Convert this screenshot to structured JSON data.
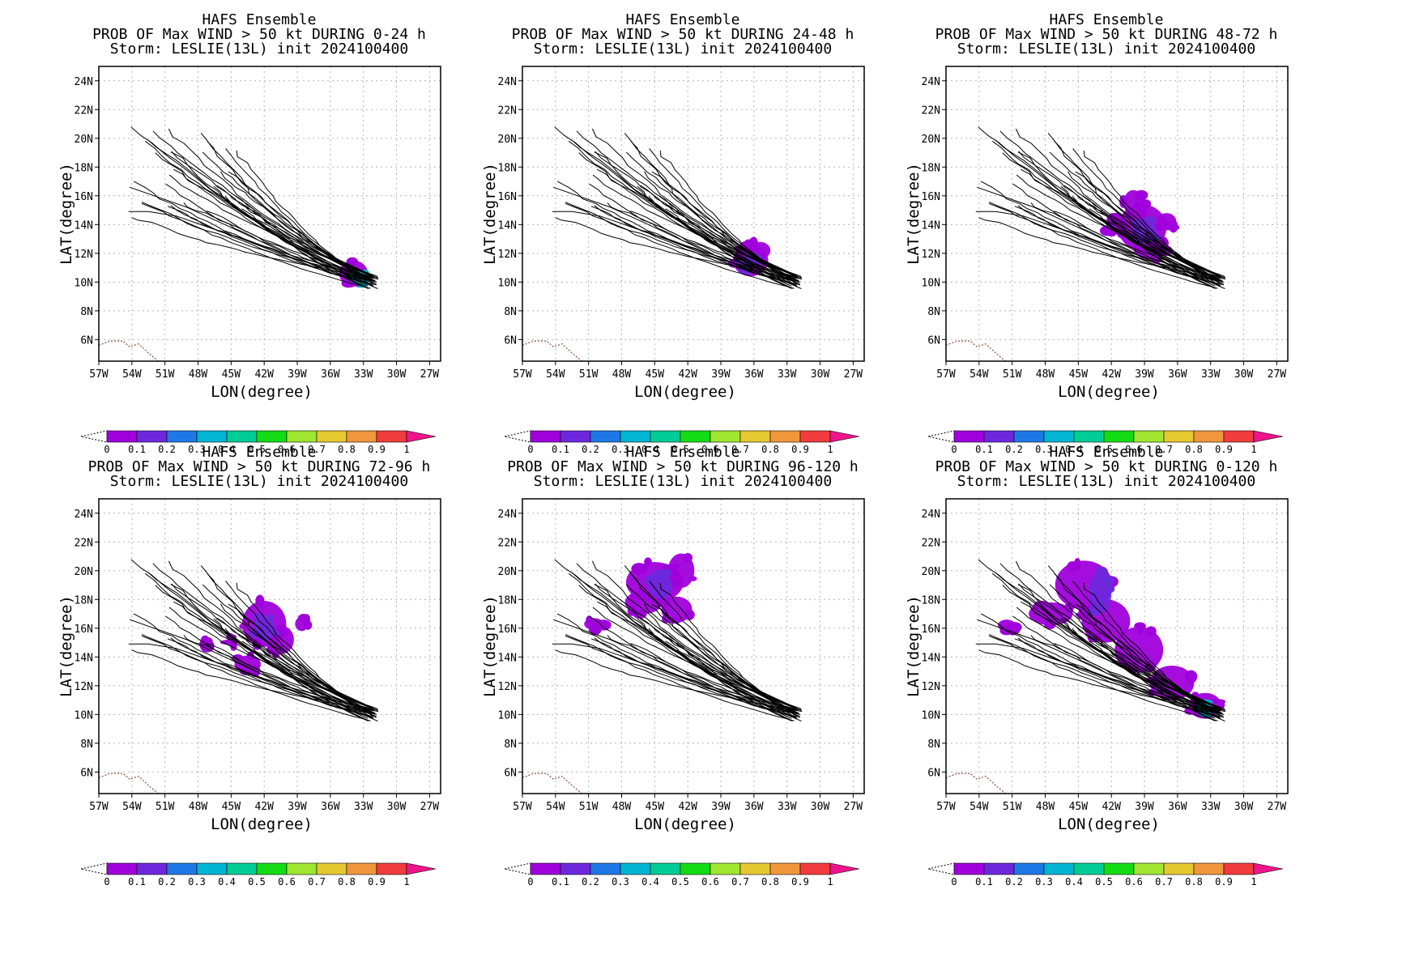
{
  "figure": {
    "colorbar": {
      "colors": [
        "#a000dc",
        "#6e28dc",
        "#1e78e6",
        "#00b4d2",
        "#00cc96",
        "#14dc14",
        "#a0e632",
        "#e6c832",
        "#f0963c",
        "#f03c3c"
      ],
      "under_color": "#ffffff",
      "over_color": "#f0148c",
      "tick_labels": [
        "0",
        "0.1",
        "0.2",
        "0.3",
        "0.4",
        "0.5",
        "0.6",
        "0.7",
        "0.8",
        "0.9",
        "1"
      ]
    },
    "style": {
      "track_color": "#000000",
      "grid_color": "#b4b4b4",
      "coast_color": "#8b4b3a"
    }
  },
  "chart_data": [
    {
      "type": "heatmap",
      "title_lines": [
        "HAFS Ensemble",
        "PROB OF Max WIND > 50 kt DURING  0-24 h",
        "Storm: LESLIE(13L) init 2024100400"
      ],
      "xlabel": "LON(degree)",
      "ylabel": "LAT(degree)",
      "x_ticks": [
        "57W",
        "54W",
        "51W",
        "48W",
        "45W",
        "42W",
        "39W",
        "36W",
        "33W",
        "30W",
        "27W"
      ],
      "y_ticks": [
        "6N",
        "8N",
        "10N",
        "12N",
        "14N",
        "16N",
        "18N",
        "20N",
        "22N",
        "24N"
      ],
      "xlim": [
        -57,
        -26
      ],
      "ylim": [
        4.5,
        25
      ],
      "grid": true,
      "prob_blobs": [
        {
          "lon": -33.9,
          "lat": 10.6,
          "rx": 1.3,
          "ry": 0.9,
          "value": 0.05
        },
        {
          "lon": -33.3,
          "lat": 10.4,
          "rx": 0.6,
          "ry": 0.4,
          "value": 0.3
        }
      ]
    },
    {
      "type": "heatmap",
      "title_lines": [
        "HAFS Ensemble",
        "PROB OF Max WIND > 50 kt DURING 24-48 h",
        "Storm: LESLIE(13L) init 2024100400"
      ],
      "xlabel": "LON(degree)",
      "ylabel": "LAT(degree)",
      "x_ticks": [
        "57W",
        "54W",
        "51W",
        "48W",
        "45W",
        "42W",
        "39W",
        "36W",
        "33W",
        "30W",
        "27W"
      ],
      "y_ticks": [
        "6N",
        "8N",
        "10N",
        "12N",
        "14N",
        "16N",
        "18N",
        "20N",
        "22N",
        "24N"
      ],
      "xlim": [
        -57,
        -26
      ],
      "ylim": [
        4.5,
        25
      ],
      "grid": true,
      "prob_blobs": [
        {
          "lon": -36.3,
          "lat": 11.5,
          "rx": 1.6,
          "ry": 1.1,
          "value": 0.05
        },
        {
          "lon": -35.5,
          "lat": 12.2,
          "rx": 1.0,
          "ry": 0.6,
          "value": 0.05
        },
        {
          "lon": -36.5,
          "lat": 11.3,
          "rx": 0.8,
          "ry": 0.5,
          "value": 0.15
        }
      ]
    },
    {
      "type": "heatmap",
      "title_lines": [
        "HAFS Ensemble",
        "PROB OF Max WIND > 50 kt DURING 48-72 h",
        "Storm: LESLIE(13L) init 2024100400"
      ],
      "xlabel": "LON(degree)",
      "ylabel": "LAT(degree)",
      "x_ticks": [
        "57W",
        "54W",
        "51W",
        "48W",
        "45W",
        "42W",
        "39W",
        "36W",
        "33W",
        "30W",
        "27W"
      ],
      "y_ticks": [
        "6N",
        "8N",
        "10N",
        "12N",
        "14N",
        "16N",
        "18N",
        "20N",
        "22N",
        "24N"
      ],
      "xlim": [
        -57,
        -26
      ],
      "ylim": [
        4.5,
        25
      ],
      "grid": true,
      "prob_blobs": [
        {
          "lon": -39.2,
          "lat": 13.8,
          "rx": 2.2,
          "ry": 1.6,
          "value": 0.05
        },
        {
          "lon": -40.0,
          "lat": 15.5,
          "rx": 0.9,
          "ry": 0.9,
          "value": 0.05
        },
        {
          "lon": -41.5,
          "lat": 13.9,
          "rx": 1.0,
          "ry": 0.6,
          "value": 0.05
        },
        {
          "lon": -38.6,
          "lat": 12.3,
          "rx": 1.4,
          "ry": 0.7,
          "value": 0.05
        },
        {
          "lon": -37.0,
          "lat": 14.2,
          "rx": 0.9,
          "ry": 0.6,
          "value": 0.05
        },
        {
          "lon": -39.0,
          "lat": 13.6,
          "rx": 1.1,
          "ry": 0.8,
          "value": 0.15
        }
      ]
    },
    {
      "type": "heatmap",
      "title_lines": [
        "HAFS Ensemble",
        "PROB OF Max WIND > 50 kt DURING 72-96 h",
        "Storm: LESLIE(13L) init 2024100400"
      ],
      "xlabel": "LON(degree)",
      "ylabel": "LAT(degree)",
      "x_ticks": [
        "57W",
        "54W",
        "51W",
        "48W",
        "45W",
        "42W",
        "39W",
        "36W",
        "33W",
        "30W",
        "27W"
      ],
      "y_ticks": [
        "6N",
        "8N",
        "10N",
        "12N",
        "14N",
        "16N",
        "18N",
        "20N",
        "22N",
        "24N"
      ],
      "xlim": [
        -57,
        -26
      ],
      "ylim": [
        4.5,
        25
      ],
      "grid": true,
      "prob_blobs": [
        {
          "lon": -42.0,
          "lat": 16.3,
          "rx": 2.0,
          "ry": 1.6,
          "value": 0.05
        },
        {
          "lon": -40.5,
          "lat": 15.2,
          "rx": 1.2,
          "ry": 1.0,
          "value": 0.05
        },
        {
          "lon": -38.6,
          "lat": 16.3,
          "rx": 0.6,
          "ry": 0.5,
          "value": 0.05
        },
        {
          "lon": -43.5,
          "lat": 13.5,
          "rx": 1.2,
          "ry": 0.6,
          "value": 0.05
        },
        {
          "lon": -47.5,
          "lat": 14.9,
          "rx": 0.4,
          "ry": 0.3,
          "value": 0.05
        },
        {
          "lon": -45.0,
          "lat": 15.1,
          "rx": 0.4,
          "ry": 0.3,
          "value": 0.05
        },
        {
          "lon": -42.0,
          "lat": 16.0,
          "rx": 1.0,
          "ry": 0.9,
          "value": 0.15
        }
      ]
    },
    {
      "type": "heatmap",
      "title_lines": [
        "HAFS Ensemble",
        "PROB OF Max WIND > 50 kt DURING 96-120 h",
        "Storm: LESLIE(13L) init 2024100400"
      ],
      "xlabel": "LON(degree)",
      "ylabel": "LAT(degree)",
      "x_ticks": [
        "57W",
        "54W",
        "51W",
        "48W",
        "45W",
        "42W",
        "39W",
        "36W",
        "33W",
        "30W",
        "27W"
      ],
      "y_ticks": [
        "6N",
        "8N",
        "10N",
        "12N",
        "14N",
        "16N",
        "18N",
        "20N",
        "22N",
        "24N"
      ],
      "xlim": [
        -57,
        -26
      ],
      "ylim": [
        4.5,
        25
      ],
      "grid": true,
      "prob_blobs": [
        {
          "lon": -45.0,
          "lat": 19.2,
          "rx": 2.6,
          "ry": 1.4,
          "value": 0.05
        },
        {
          "lon": -42.6,
          "lat": 20.0,
          "rx": 1.2,
          "ry": 1.2,
          "value": 0.05
        },
        {
          "lon": -46.0,
          "lat": 17.8,
          "rx": 1.7,
          "ry": 0.8,
          "value": 0.05
        },
        {
          "lon": -43.0,
          "lat": 17.3,
          "rx": 1.4,
          "ry": 0.9,
          "value": 0.05
        },
        {
          "lon": -50.5,
          "lat": 16.3,
          "rx": 0.9,
          "ry": 0.4,
          "value": 0.05
        },
        {
          "lon": -44.5,
          "lat": 19.0,
          "rx": 1.1,
          "ry": 0.9,
          "value": 0.15
        }
      ]
    },
    {
      "type": "heatmap",
      "title_lines": [
        "HAFS Ensemble",
        "PROB OF Max WIND > 50 kt DURING 0-120 h",
        "Storm: LESLIE(13L) init 2024100400"
      ],
      "xlabel": "LON(degree)",
      "ylabel": "LAT(degree)",
      "x_ticks": [
        "57W",
        "54W",
        "51W",
        "48W",
        "45W",
        "42W",
        "39W",
        "36W",
        "33W",
        "30W",
        "27W"
      ],
      "y_ticks": [
        "6N",
        "8N",
        "10N",
        "12N",
        "14N",
        "16N",
        "18N",
        "20N",
        "22N",
        "24N"
      ],
      "xlim": [
        -57,
        -26
      ],
      "ylim": [
        4.5,
        25
      ],
      "grid": true,
      "prob_blobs": [
        {
          "lon": -44.5,
          "lat": 19.0,
          "rx": 2.6,
          "ry": 1.7,
          "value": 0.05
        },
        {
          "lon": -42.5,
          "lat": 16.5,
          "rx": 2.2,
          "ry": 1.5,
          "value": 0.05
        },
        {
          "lon": -39.5,
          "lat": 14.5,
          "rx": 2.2,
          "ry": 1.6,
          "value": 0.05
        },
        {
          "lon": -36.5,
          "lat": 12.2,
          "rx": 2.0,
          "ry": 1.2,
          "value": 0.05
        },
        {
          "lon": -33.5,
          "lat": 10.6,
          "rx": 1.5,
          "ry": 0.9,
          "value": 0.05
        },
        {
          "lon": -47.5,
          "lat": 17.0,
          "rx": 2.0,
          "ry": 0.8,
          "value": 0.05
        },
        {
          "lon": -51.5,
          "lat": 16.2,
          "rx": 0.8,
          "ry": 0.4,
          "value": 0.05
        },
        {
          "lon": -43.0,
          "lat": 18.5,
          "rx": 1.0,
          "ry": 1.5,
          "value": 0.15
        },
        {
          "lon": -33.5,
          "lat": 10.5,
          "rx": 0.7,
          "ry": 0.4,
          "value": 0.3
        }
      ]
    }
  ]
}
